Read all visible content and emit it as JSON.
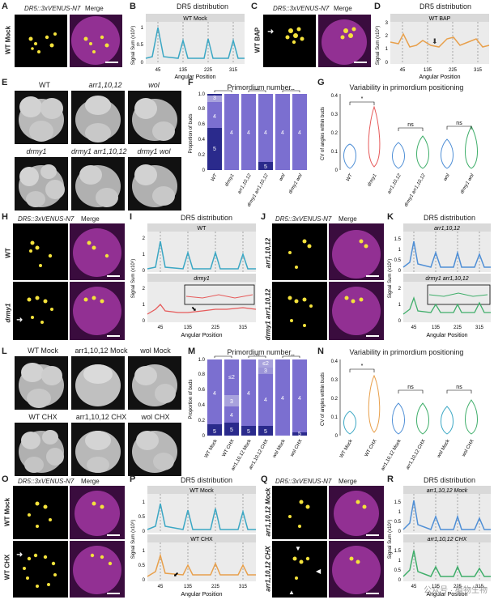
{
  "panels": {
    "A": {
      "letter": "A",
      "reporter": "DR5::3xVENUS-N7",
      "merge": "Merge",
      "side": "WT Mock"
    },
    "B": {
      "letter": "B",
      "title": "DR5 distribution",
      "strip": "WT Mock",
      "ylabel": "Signal Sum (x10⁶)",
      "xlabel": "Angular Position",
      "yticks": [
        "0",
        "0.5",
        "1"
      ],
      "xticks": [
        "45",
        "135",
        "225",
        "315"
      ]
    },
    "C": {
      "letter": "C",
      "reporter": "DR5::3xVENUS-N7",
      "merge": "Merge",
      "side": "WT BAP"
    },
    "D": {
      "letter": "D",
      "title": "DR5 distribution",
      "strip": "WT BAP",
      "ylabel": "Signal Sum (x10⁶)",
      "xlabel": "Angular Position",
      "yticks": [
        "0",
        "1",
        "2",
        "3"
      ],
      "xticks": [
        "45",
        "135",
        "225",
        "315"
      ]
    },
    "E": {
      "letter": "E",
      "labels": [
        "WT",
        "arr1,10,12",
        "wol",
        "drmy1",
        "drmy1 arr1,10,12",
        "drmy1 wol"
      ]
    },
    "F": {
      "letter": "F",
      "title": "Primordium number",
      "ylabel": "Proportion of buds",
      "yticks": [
        "0",
        "0.2",
        "0.4",
        "0.6",
        "0.8",
        "1.0"
      ],
      "xcats": [
        "WT",
        "drmy1",
        "arr1,10,12",
        "drmy1 arr1,10,12",
        "wol",
        "drmy1 wol"
      ],
      "sig": [
        "*",
        "ns",
        "ns"
      ]
    },
    "G": {
      "letter": "G",
      "title": "Variability in primordium positioning",
      "ylabel": "CV of angles within buds",
      "yticks": [
        "0",
        "0.1",
        "0.2",
        "0.3",
        "0.4"
      ],
      "xcats": [
        "WT",
        "drmy1",
        "arr1,10,12",
        "drmy1 arr1,10,12",
        "wol",
        "drmy1 wol"
      ],
      "sig": [
        "*",
        "ns",
        "ns"
      ]
    },
    "H": {
      "letter": "H",
      "reporter": "DR5::3xVENUS-N7",
      "merge": "Merge",
      "side1": "WT",
      "side2": "drmy1"
    },
    "I": {
      "letter": "I",
      "title": "DR5 distribution",
      "strip1": "WT",
      "strip2": "drmy1",
      "ylabel": "Signal Sum (x10⁶)",
      "xlabel": "Angular Position",
      "yticks1": [
        "0",
        "1",
        "2"
      ],
      "yticks2": [
        "0",
        "1",
        "2"
      ],
      "xticks": [
        "45",
        "135",
        "225",
        "315"
      ]
    },
    "J": {
      "letter": "J",
      "reporter": "DR5::3xVENUS-N7",
      "merge": "Merge",
      "side1": "arr1,10,12",
      "side2": "drmy1 arr1,10,12"
    },
    "K": {
      "letter": "K",
      "title": "DR5 distribution",
      "strip1": "arr1,10,12",
      "strip2": "drmy1 arr1,10,12",
      "ylabel": "Signal Sum (x10⁶)",
      "xlabel": "Angular Position",
      "yticks1": [
        "0",
        "0.5",
        "1",
        "1.5"
      ],
      "yticks2": [
        "0",
        "1",
        "2"
      ],
      "xticks": [
        "45",
        "135",
        "225",
        "315"
      ]
    },
    "L": {
      "letter": "L",
      "labels": [
        "WT Mock",
        "arr1,10,12 Mock",
        "wol Mock",
        "WT CHX",
        "arr1,10,12 CHX",
        "wol CHX"
      ]
    },
    "M": {
      "letter": "M",
      "title": "Primordium number",
      "ylabel": "Proportion of buds",
      "yticks": [
        "0",
        "0.2",
        "0.4",
        "0.6",
        "0.8",
        "1.0"
      ],
      "xcats": [
        "WT Mock",
        "WT CHX",
        "arr1,10,12 Mock",
        "arr1,10,12 CHX",
        "wol Mock",
        "wol CHX"
      ],
      "sig": [
        "*",
        "ns",
        "ns"
      ]
    },
    "N": {
      "letter": "N",
      "title": "Variability in primordium positioning",
      "ylabel": "CV of angles within buds",
      "yticks": [
        "0",
        "0.1",
        "0.2",
        "0.3",
        "0.4"
      ],
      "xcats": [
        "WT Mock",
        "WT CHX",
        "arr1,10,12 Mock",
        "arr1,10,12 CHX",
        "wol Mock",
        "wol CHX"
      ],
      "sig": [
        "*",
        "ns",
        "ns"
      ]
    },
    "O": {
      "letter": "O",
      "reporter": "DR5::3xVENUS-N7",
      "merge": "Merge",
      "side1": "WT Mock",
      "side2": "WT CHX"
    },
    "P": {
      "letter": "P",
      "title": "DR5 distribution",
      "strip1": "WT Mock",
      "strip2": "WT CHX",
      "ylabel": "Signal Sum (x10⁶)",
      "xlabel": "Angular Position",
      "yticks1": [
        "0",
        "0.5",
        "1"
      ],
      "yticks2": [
        "0",
        "0.5",
        "1"
      ],
      "xticks": [
        "45",
        "135",
        "225",
        "315"
      ]
    },
    "Q": {
      "letter": "Q",
      "reporter": "DR5::3xVENUS-N7",
      "merge": "Merge",
      "side1": "arr1,10,12 Mock",
      "side2": "arr1,10,12 CHX"
    },
    "R": {
      "letter": "R",
      "title": "DR5 distribution",
      "strip1": "arr1,10,12 Mock",
      "strip2": "arr1,10,12 CHX",
      "ylabel": "Signal Sum (x10⁶)",
      "xlabel": "Angular Position",
      "yticks1": [
        "0",
        "0.5",
        "1",
        "1.5"
      ],
      "yticks2": [
        "0",
        "0.5",
        "1",
        "1.5"
      ],
      "xticks": [
        "45",
        "135",
        "225",
        "315"
      ]
    }
  },
  "bar_labels": {
    "F": [
      [
        "3",
        "4",
        "5"
      ],
      [
        "4"
      ],
      [
        "4"
      ],
      [
        "4",
        "5"
      ],
      [
        "4"
      ],
      [
        "4"
      ]
    ],
    "M": [
      [
        "4",
        "5"
      ],
      [
        "≤2",
        "3",
        "4",
        "5"
      ],
      [
        "4",
        "5"
      ],
      [
        "≤2",
        "3",
        "4",
        "5"
      ],
      [
        "4"
      ],
      [
        "4",
        "5"
      ]
    ]
  },
  "colors": {
    "blue": "#3ba7c4",
    "orange": "#e8a04c",
    "arrblue": "#4f8fd6",
    "green": "#3fae6a",
    "red": "#e65a5a",
    "purple": "#7b6fd0",
    "darkpurple": "#2a2a8c",
    "lightpurple": "#a8a2dd",
    "yellow": "#f4e23c",
    "magenta": "#b03cb0"
  },
  "watermark": "公众号 · 植物生物"
}
